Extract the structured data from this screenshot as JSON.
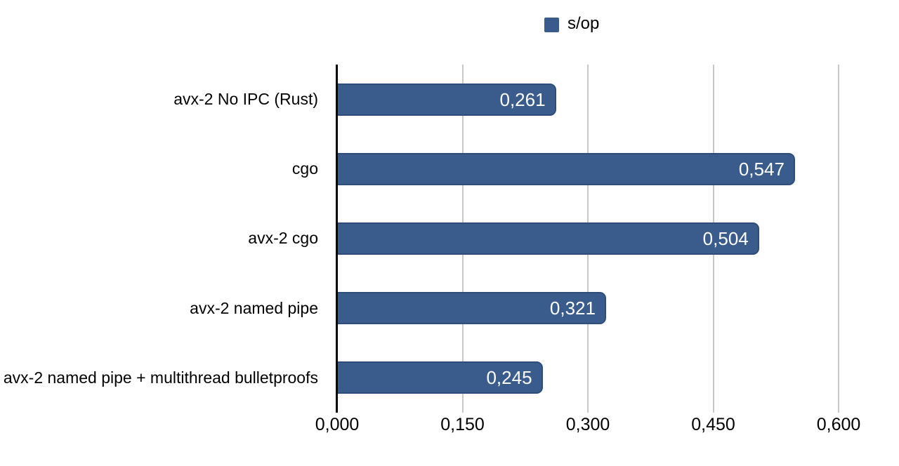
{
  "chart_data": {
    "type": "bar",
    "orientation": "horizontal",
    "legend": {
      "label": "s/op",
      "position": "top"
    },
    "categories": [
      "avx-2 No IPC (Rust)",
      "cgo",
      "avx-2 cgo",
      "avx-2 named pipe",
      "avx-2 named pipe + multithread bulletproofs"
    ],
    "values": [
      0.261,
      0.547,
      0.504,
      0.321,
      0.245
    ],
    "value_labels": [
      "0,261",
      "0,547",
      "0,504",
      "0,321",
      "0,245"
    ],
    "x_ticks": [
      "0,000",
      "0,150",
      "0,300",
      "0,450",
      "0,600"
    ],
    "x_tick_values": [
      0,
      0.15,
      0.3,
      0.45,
      0.6
    ],
    "xlim": [
      0,
      0.6
    ],
    "grid": true,
    "colors": {
      "bar": "#3a5c8c",
      "bar_border": "#2e4d78",
      "gridline": "#c9c9c9",
      "axis": "#000000",
      "value_text": "#ffffff",
      "label_text": "#000000",
      "background": "#ffffff"
    }
  }
}
